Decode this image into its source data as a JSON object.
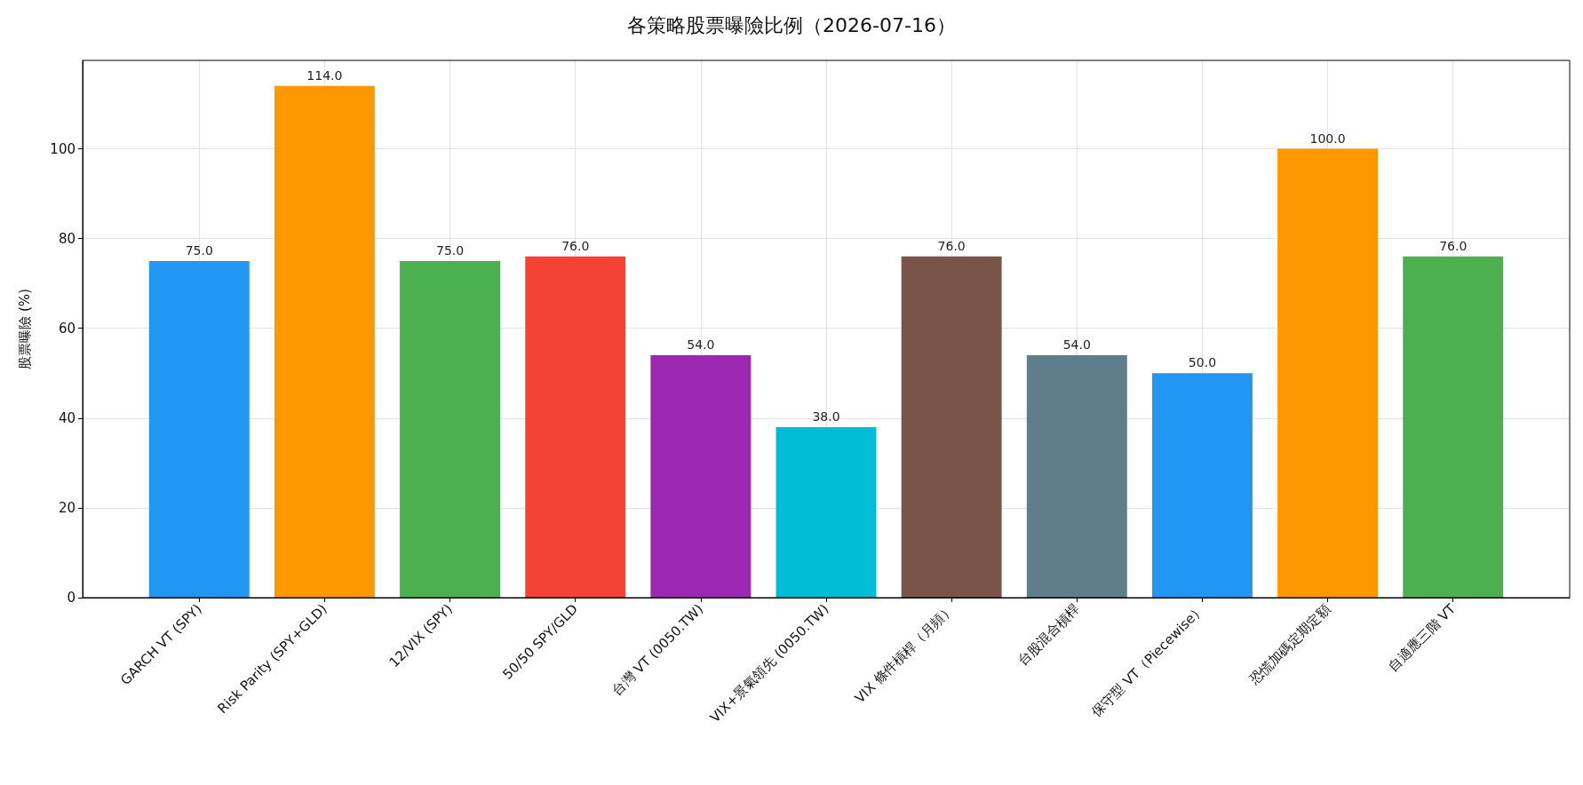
{
  "chart_data": {
    "type": "bar",
    "title": "各策略股票曝險比例（2026-07-16）",
    "ylabel": "股票曝險 (%)",
    "categories": [
      "GARCH VT (SPY)",
      "Risk Parity (SPY+GLD)",
      "12/VIX (SPY)",
      "50/50 SPY/GLD",
      "台灣 VT (0050.TW)",
      "VIX+景氣領先 (0050.TW)",
      "VIX 條件槓桿（月頻）",
      "台股混合槓桿",
      "保守型 VT（Piecewise）",
      "恐慌加碼定期定額",
      "自適應三階 VT"
    ],
    "values": [
      75,
      114,
      75,
      76,
      54,
      38,
      76,
      54,
      50,
      100,
      76
    ],
    "value_labels": [
      "75.0",
      "114.0",
      "75.0",
      "76.0",
      "54.0",
      "38.0",
      "76.0",
      "54.0",
      "50.0",
      "100.0",
      "76.0"
    ],
    "colors": [
      "#2196f3",
      "#ff9800",
      "#4caf50",
      "#f44336",
      "#9c27b0",
      "#00bcd4",
      "#795548",
      "#607d8b",
      "#2196f3",
      "#ff9800",
      "#4caf50"
    ],
    "ylim": [
      0,
      119.7
    ],
    "yticks": [
      0,
      20,
      40,
      60,
      80,
      100
    ],
    "grid": true
  }
}
